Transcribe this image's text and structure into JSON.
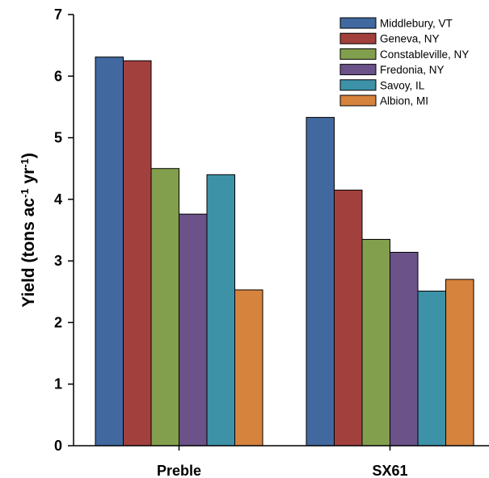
{
  "chart_data": {
    "type": "bar",
    "title": "",
    "xlabel": "",
    "ylabel": {
      "prefix": "Yield (tons ac",
      "sup1": "-1",
      "mid": " yr",
      "sup2": "-1",
      "suffix": ")"
    },
    "ylim": [
      0,
      7
    ],
    "yticks": [
      "0",
      "1",
      "2",
      "3",
      "4",
      "5",
      "6",
      "7"
    ],
    "categories": [
      "Preble",
      "SX61"
    ],
    "series": [
      {
        "name": "Middlebury, VT",
        "color": "#4169a0",
        "values": [
          6.31,
          5.33
        ]
      },
      {
        "name": "Geneva, NY",
        "color": "#a2403e",
        "values": [
          6.25,
          4.15
        ]
      },
      {
        "name": "Constableville, NY",
        "color": "#829f4d",
        "values": [
          4.5,
          3.35
        ]
      },
      {
        "name": "Fredonia, NY",
        "color": "#6b5289",
        "values": [
          3.76,
          3.14
        ]
      },
      {
        "name": "Savoy, IL",
        "color": "#3d92a8",
        "values": [
          4.4,
          2.51
        ]
      },
      {
        "name": "Albion, MI",
        "color": "#d6833d",
        "values": [
          2.53,
          2.7
        ]
      }
    ],
    "legend_position": "top-right",
    "grid": false
  }
}
